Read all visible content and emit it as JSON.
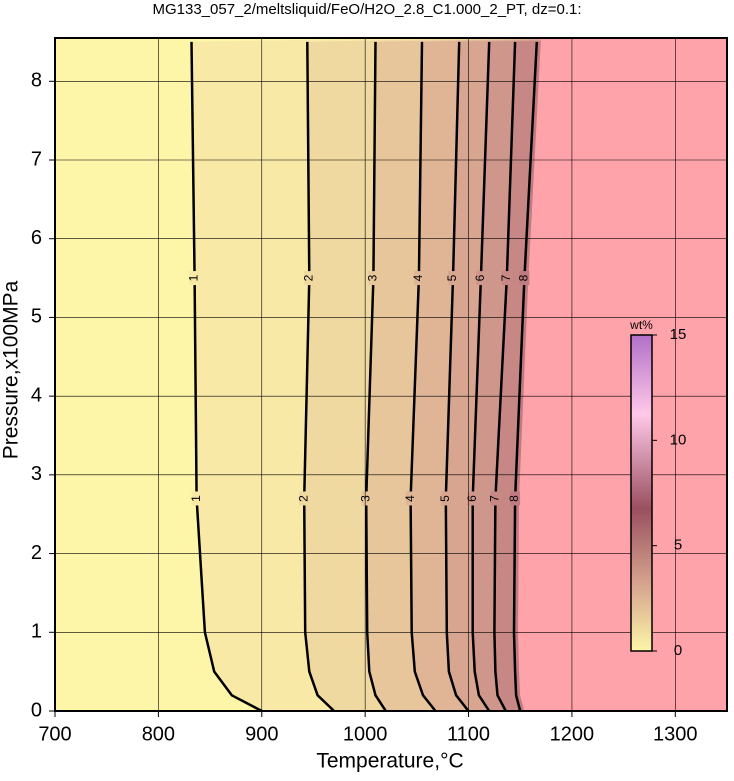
{
  "chart_data": {
    "type": "contour",
    "title": "MG133_057_2/meltsliquid/FeO/H2O_2.8_C1.000_2_PT, dz=0.1:",
    "xlabel": "Temperature,°C",
    "ylabel": "Pressure,x100MPa",
    "xlim": [
      700,
      1350
    ],
    "ylim": [
      0,
      8.55
    ],
    "xticks": [
      700,
      800,
      900,
      1000,
      1100,
      1200,
      1300
    ],
    "yticks": [
      0,
      1,
      2,
      3,
      4,
      5,
      6,
      7,
      8
    ],
    "grid": true,
    "base_color": "#fdf5a8",
    "above_color": "#ffa3ab",
    "line_color": "#000000",
    "contours": [
      {
        "level": 1,
        "fill": "#f8e9a6",
        "temperature": [
          900,
          871,
          854,
          845,
          837,
          835,
          832
        ],
        "pressure": [
          0,
          0.2,
          0.5,
          1,
          2.7,
          5.5,
          8.5
        ]
      },
      {
        "level": 2,
        "fill": "#f0d8a1",
        "temperature": [
          970,
          954,
          946,
          942,
          941,
          946,
          944
        ],
        "pressure": [
          0,
          0.2,
          0.5,
          1,
          2.7,
          5.5,
          8.5
        ]
      },
      {
        "level": 3,
        "fill": "#e8c69c",
        "temperature": [
          1020,
          1010,
          1004,
          1002,
          1001,
          1008,
          1010
        ],
        "pressure": [
          0,
          0.2,
          0.5,
          1,
          2.7,
          5.5,
          8.5
        ]
      },
      {
        "level": 4,
        "fill": "#dfb596",
        "temperature": [
          1068,
          1056,
          1048,
          1045,
          1044,
          1052,
          1055
        ],
        "pressure": [
          0,
          0.2,
          0.5,
          1,
          2.7,
          5.5,
          8.5
        ]
      },
      {
        "level": 5,
        "fill": "#d7a590",
        "temperature": [
          1100,
          1088,
          1081,
          1079,
          1078,
          1085,
          1091
        ],
        "pressure": [
          0,
          0.2,
          0.5,
          1,
          2.7,
          5.5,
          8.5
        ]
      },
      {
        "level": 6,
        "fill": "#cf968b",
        "temperature": [
          1120,
          1110,
          1106,
          1104,
          1104,
          1112,
          1120
        ],
        "pressure": [
          0,
          0.2,
          0.5,
          1,
          2.7,
          5.5,
          8.5
        ]
      },
      {
        "level": 7,
        "fill": "#c78885",
        "temperature": [
          1136,
          1128,
          1126,
          1125,
          1126,
          1137,
          1145
        ],
        "pressure": [
          0,
          0.2,
          0.5,
          1,
          2.7,
          5.5,
          8.5
        ]
      },
      {
        "level": 8,
        "fill": "#bf7b80",
        "temperature": [
          1150,
          1146,
          1145,
          1144,
          1145,
          1154,
          1166
        ],
        "pressure": [
          0,
          0.2,
          0.5,
          1,
          2.7,
          5.5,
          8.5
        ]
      }
    ],
    "colorbar": {
      "label": "wt%",
      "lim": [
        0,
        15
      ],
      "ticks": [
        0,
        5,
        10,
        15
      ]
    }
  }
}
